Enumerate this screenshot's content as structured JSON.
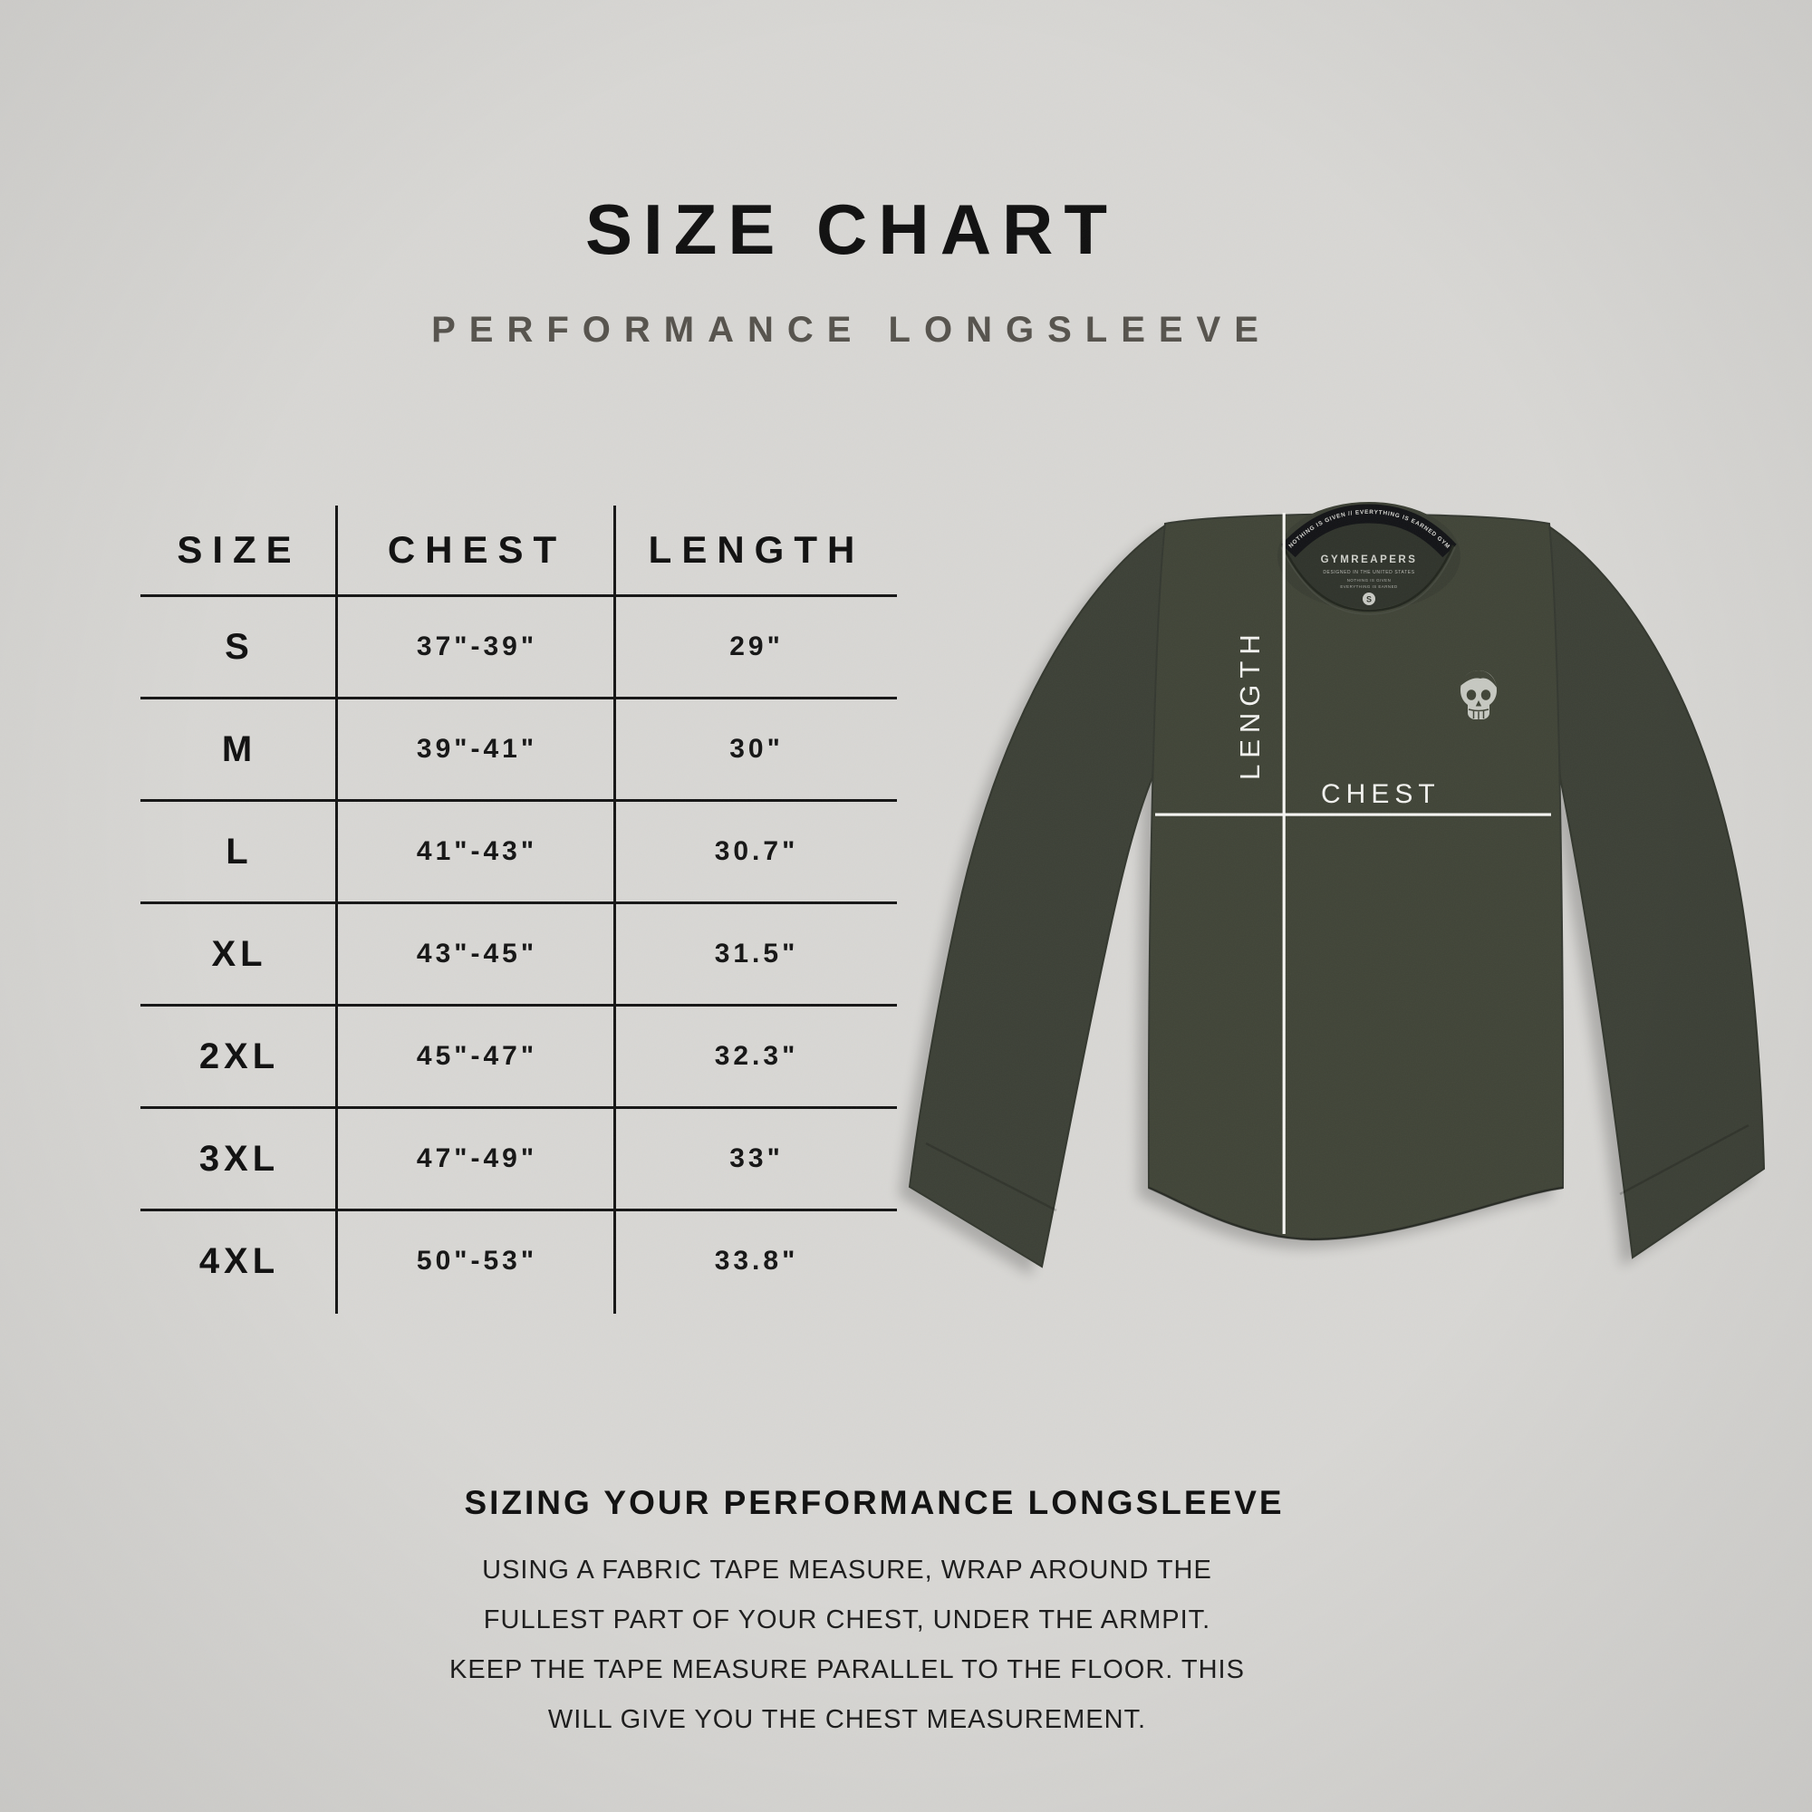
{
  "page": {
    "title": "SIZE CHART",
    "subtitle": "PERFORMANCE LONGSLEEVE"
  },
  "table": {
    "headers": [
      "SIZE",
      "CHEST",
      "LENGTH"
    ],
    "rows": [
      {
        "size": "S",
        "chest": "37\"-39\"",
        "length": "29\""
      },
      {
        "size": "M",
        "chest": "39\"-41\"",
        "length": "30\""
      },
      {
        "size": "L",
        "chest": "41\"-43\"",
        "length": "30.7\""
      },
      {
        "size": "XL",
        "chest": "43\"-45\"",
        "length": "31.5\""
      },
      {
        "size": "2XL",
        "chest": "45\"-47\"",
        "length": "32.3\""
      },
      {
        "size": "3XL",
        "chest": "47\"-49\"",
        "length": "33\""
      },
      {
        "size": "4XL",
        "chest": "50\"-53\"",
        "length": "33.8\""
      }
    ]
  },
  "diagram": {
    "length_label": "LENGTH",
    "chest_label": "CHEST",
    "neck_tape_text": "NOTHING IS GIVEN // EVERYTHING IS EARNED      GYMREAPERS      NOTHING IS GIVEN",
    "collar_brand": "GYMREAPERS",
    "collar_line2": "DESIGNED IN THE UNITED STATES",
    "collar_line3": "NOTHING IS GIVEN",
    "collar_line4": "EVERYTHING IS EARNED",
    "collar_size": "S"
  },
  "footer": {
    "heading": "SIZING YOUR PERFORMANCE LONGSLEEVE",
    "lines": [
      "USING A FABRIC TAPE MEASURE, WRAP AROUND THE",
      "FULLEST PART OF YOUR CHEST, UNDER THE ARMPIT.",
      "KEEP THE TAPE MEASURE PARALLEL TO THE FLOOR. THIS",
      "WILL GIVE YOU THE CHEST MEASUREMENT."
    ]
  },
  "colors": {
    "background": "#d8d7d4",
    "heading_text": "#0f0f0f",
    "subtitle_text": "#55524c",
    "table_lines": "#141414",
    "shirt_body": "#404437",
    "shirt_sleeve": "#3c4036",
    "neck_tape": "#121316",
    "measure_line": "#f5f5f2",
    "skull_logo": "#c6c8c1"
  }
}
